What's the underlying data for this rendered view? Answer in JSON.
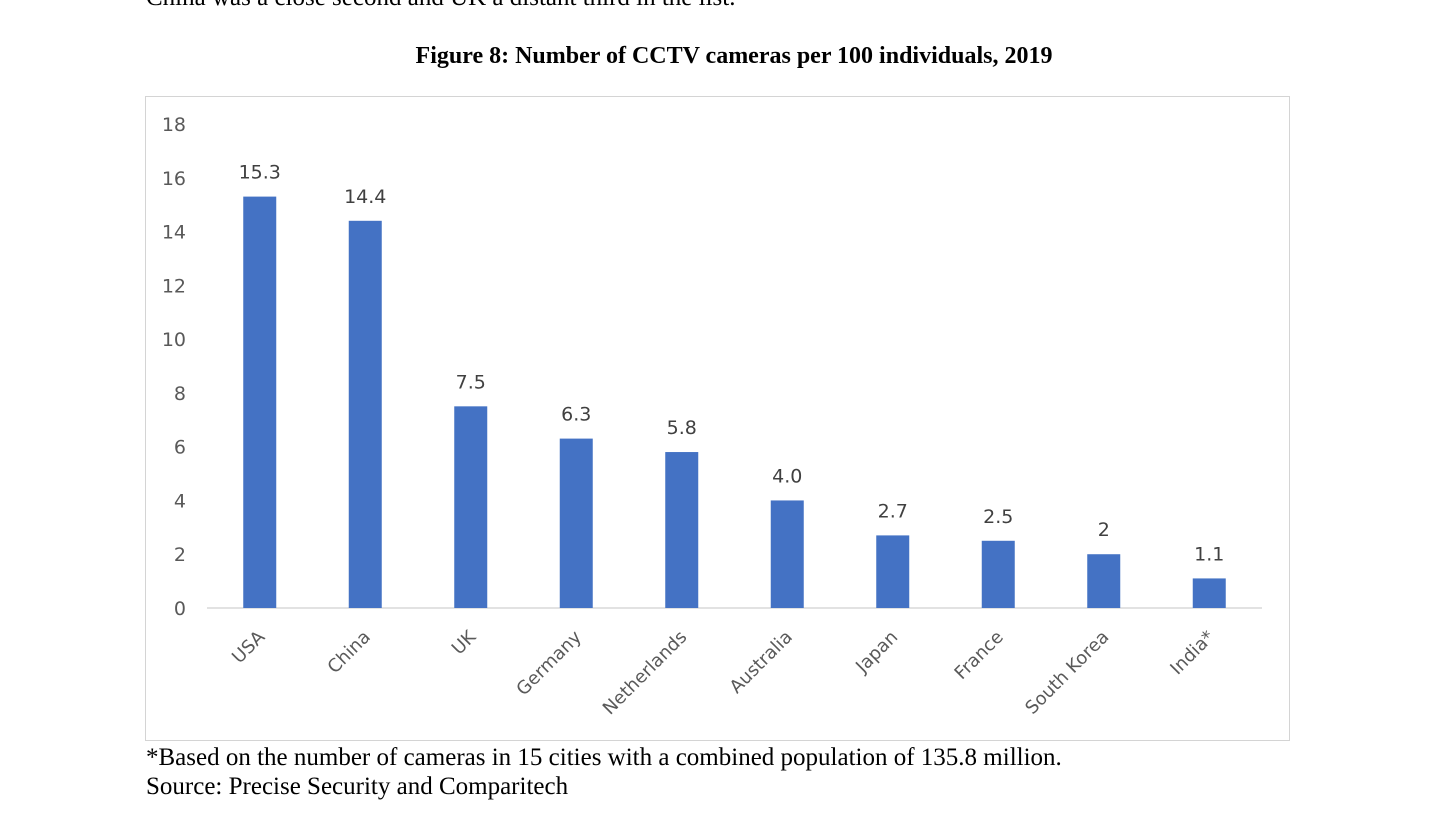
{
  "document": {
    "cut_line": "China was a close second and UK a distant third in the list.",
    "figure_title": "Figure 8: Number of CCTV cameras per 100 individuals, 2019",
    "footnote": "*Based on the number of cameras in 15 cities with a combined population of 135.8 million.",
    "source": "Source: Precise Security and Comparitech"
  },
  "colors": {
    "bar": "#4472c4",
    "axis": "#d9d9d9"
  },
  "chart_data": {
    "type": "bar",
    "title": "Figure 8: Number of CCTV cameras per 100 individuals, 2019",
    "xlabel": "",
    "ylabel": "",
    "categories": [
      "USA",
      "China",
      "UK",
      "Germany",
      "Netherlands",
      "Australia",
      "Japan",
      "France",
      "South Korea",
      "India*"
    ],
    "values": [
      15.3,
      14.4,
      7.5,
      6.3,
      5.8,
      4.0,
      2.7,
      2.5,
      2,
      1.1
    ],
    "data_labels": [
      "15.3",
      "14.4",
      "7.5",
      "6.3",
      "5.8",
      "4.0",
      "2.7",
      "2.5",
      "2",
      "1.1"
    ],
    "ylim": [
      0,
      18
    ],
    "yticks": [
      0,
      2,
      4,
      6,
      8,
      10,
      12,
      14,
      16,
      18
    ],
    "grid": false,
    "legend": "none"
  }
}
